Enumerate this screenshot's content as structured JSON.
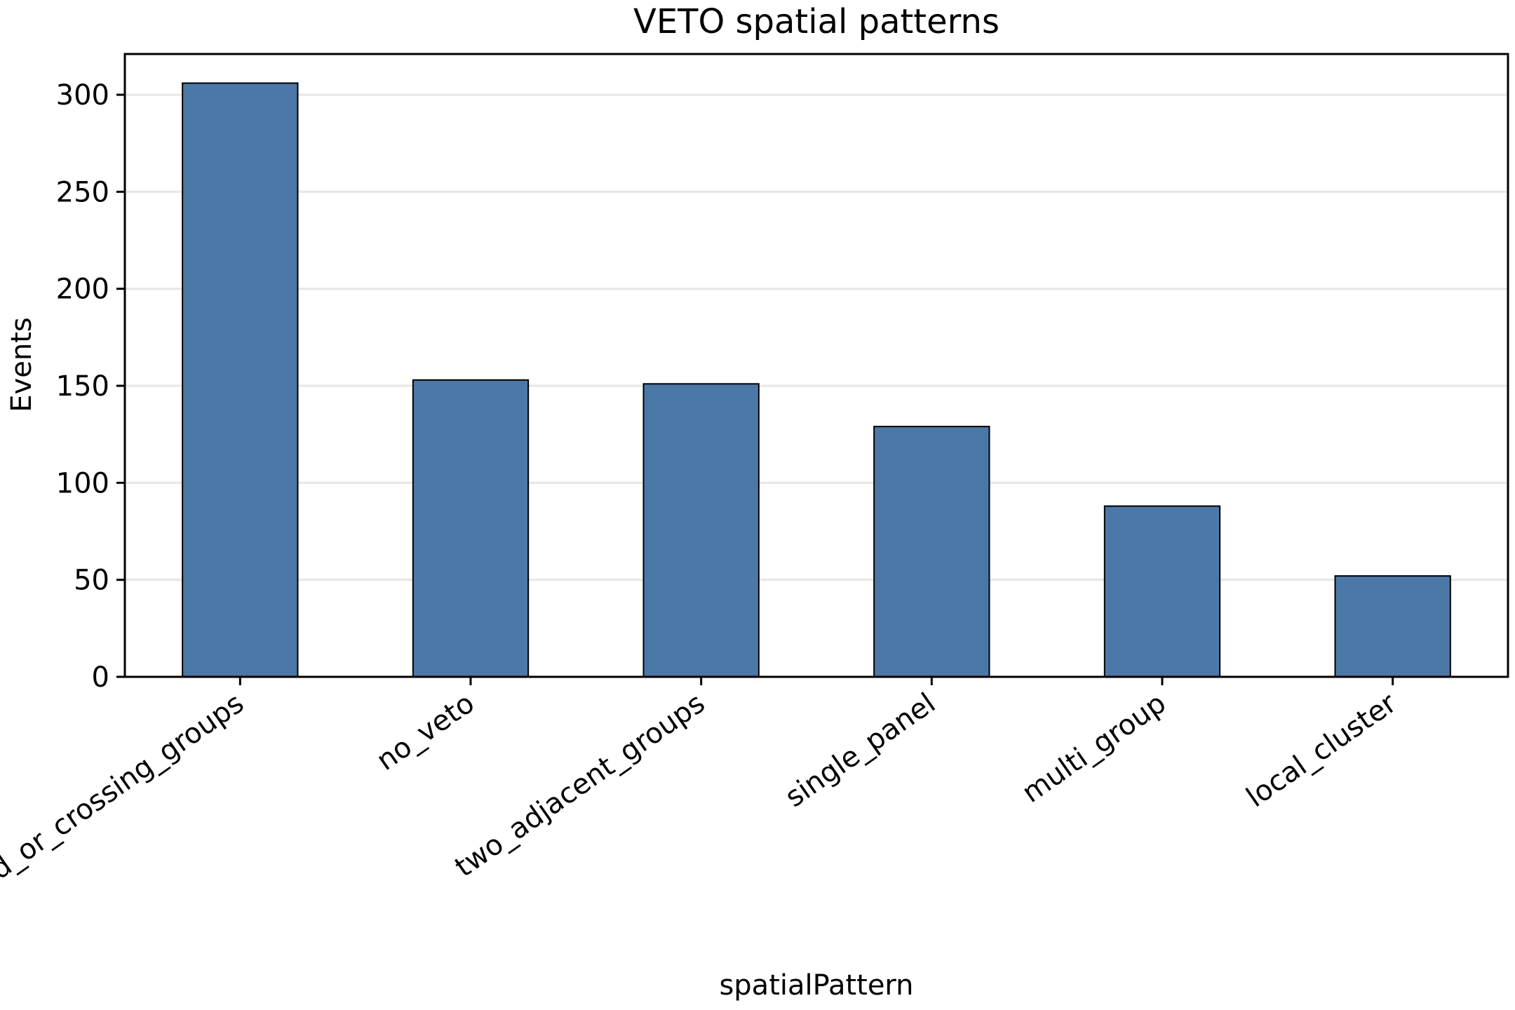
{
  "chart_data": {
    "type": "bar",
    "title": "VETO spatial patterns",
    "xlabel": "spatialPattern",
    "ylabel": "Events",
    "categories": [
      "opposed_or_crossing_groups",
      "no_veto",
      "two_adjacent_groups",
      "single_panel",
      "multi_group",
      "local_cluster"
    ],
    "values": [
      306,
      153,
      151,
      129,
      88,
      52
    ],
    "ylim": [
      0,
      321
    ],
    "yticks": [
      0,
      50,
      100,
      150,
      200,
      250,
      300
    ],
    "grid": true,
    "grid_axis": "y",
    "legend": "none",
    "bar_color": "#4c78a8"
  }
}
